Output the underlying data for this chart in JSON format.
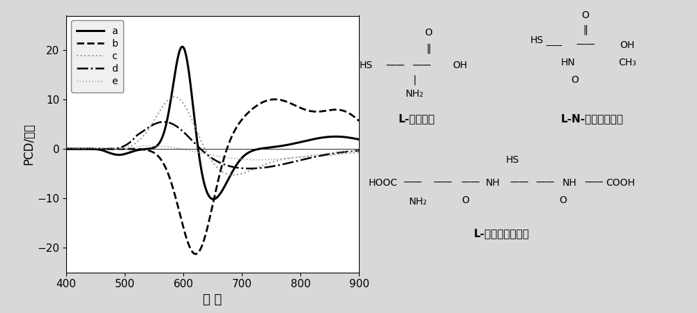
{
  "title": "",
  "xlabel": "波 长",
  "ylabel": "PCD/毫度",
  "xlim": [
    400,
    900
  ],
  "ylim": [
    -25,
    27
  ],
  "yticks": [
    -20,
    -10,
    0,
    10,
    20
  ],
  "xticks": [
    400,
    500,
    600,
    700,
    800,
    900
  ],
  "background_color": "#d8d8d8",
  "plot_bg_color": "#ffffff",
  "lines": [
    {
      "color": "#000000",
      "linestyle": "solid",
      "linewidth": 2.2,
      "label": "a"
    },
    {
      "color": "#000000",
      "linestyle": "dashed",
      "linewidth": 2.0,
      "label": "b"
    },
    {
      "color": "#999999",
      "linestyle": "dotted",
      "linewidth": 1.5,
      "label": "c"
    },
    {
      "color": "#000000",
      "linestyle": "dashdot",
      "linewidth": 1.8,
      "label": "d"
    },
    {
      "color": "#aaaaaa",
      "linestyle": "dotted",
      "linewidth": 1.2,
      "label": "e"
    }
  ]
}
